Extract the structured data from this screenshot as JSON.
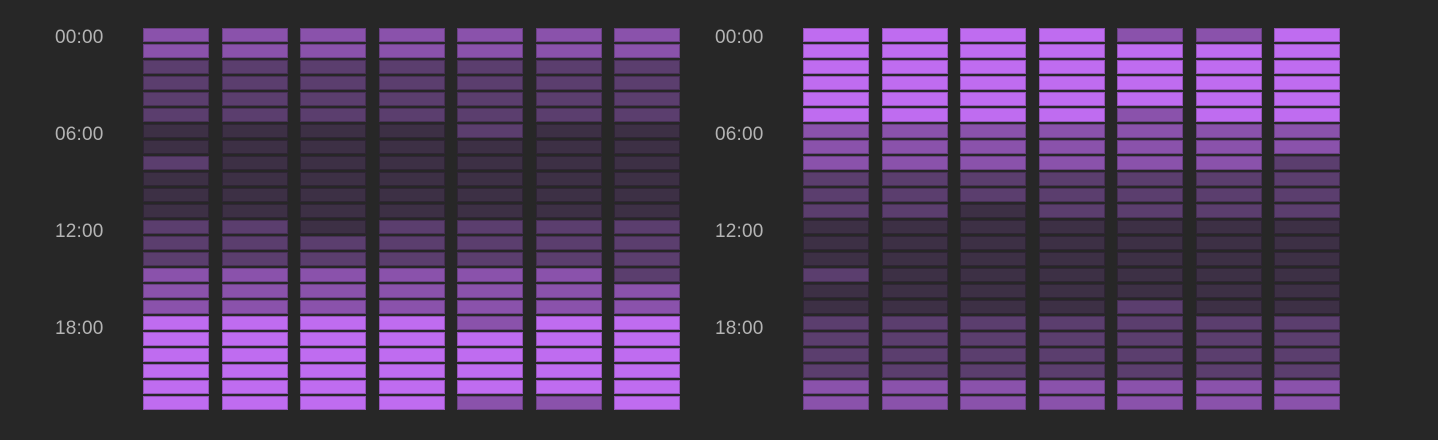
{
  "chart_data": [
    {
      "type": "heatmap",
      "title": "",
      "xlabel": "",
      "ylabel": "",
      "y_tick_labels": [
        "00:00",
        "06:00",
        "12:00",
        "18:00"
      ],
      "rows": 24,
      "columns": 7,
      "levels": 4,
      "level_colors": [
        "#3d3045",
        "#5b3e6e",
        "#8a52ab",
        "#bf6cf0"
      ],
      "legend": "none",
      "values": [
        [
          2,
          2,
          2,
          2,
          2,
          2,
          2
        ],
        [
          2,
          2,
          2,
          2,
          2,
          2,
          2
        ],
        [
          1,
          1,
          1,
          1,
          1,
          1,
          1
        ],
        [
          1,
          1,
          1,
          1,
          1,
          1,
          1
        ],
        [
          1,
          1,
          1,
          1,
          1,
          1,
          1
        ],
        [
          1,
          1,
          1,
          1,
          1,
          1,
          1
        ],
        [
          0,
          0,
          0,
          0,
          1,
          0,
          0
        ],
        [
          0,
          0,
          0,
          0,
          0,
          0,
          0
        ],
        [
          1,
          0,
          0,
          0,
          0,
          0,
          0
        ],
        [
          0,
          0,
          0,
          0,
          0,
          0,
          0
        ],
        [
          0,
          0,
          0,
          0,
          0,
          0,
          0
        ],
        [
          0,
          0,
          0,
          0,
          0,
          0,
          0
        ],
        [
          1,
          1,
          0,
          1,
          1,
          1,
          1
        ],
        [
          1,
          1,
          1,
          1,
          1,
          1,
          1
        ],
        [
          1,
          1,
          1,
          1,
          1,
          1,
          1
        ],
        [
          2,
          2,
          2,
          2,
          2,
          2,
          1
        ],
        [
          2,
          2,
          2,
          2,
          2,
          2,
          2
        ],
        [
          2,
          2,
          2,
          2,
          2,
          2,
          2
        ],
        [
          3,
          3,
          3,
          3,
          2,
          3,
          3
        ],
        [
          3,
          3,
          3,
          3,
          3,
          3,
          3
        ],
        [
          3,
          3,
          3,
          3,
          3,
          3,
          3
        ],
        [
          3,
          3,
          3,
          3,
          3,
          3,
          3
        ],
        [
          3,
          3,
          3,
          3,
          3,
          3,
          3
        ],
        [
          3,
          3,
          3,
          3,
          2,
          2,
          3
        ]
      ]
    },
    {
      "type": "heatmap",
      "title": "",
      "xlabel": "",
      "ylabel": "",
      "y_tick_labels": [
        "00:00",
        "06:00",
        "12:00",
        "18:00"
      ],
      "rows": 24,
      "columns": 7,
      "levels": 4,
      "level_colors": [
        "#3d3045",
        "#5b3e6e",
        "#8a52ab",
        "#bf6cf0"
      ],
      "legend": "none",
      "values": [
        [
          3,
          3,
          3,
          3,
          2,
          2,
          3
        ],
        [
          3,
          3,
          3,
          3,
          3,
          3,
          3
        ],
        [
          3,
          3,
          3,
          3,
          3,
          3,
          3
        ],
        [
          3,
          3,
          3,
          3,
          3,
          3,
          3
        ],
        [
          3,
          3,
          3,
          3,
          3,
          3,
          3
        ],
        [
          3,
          3,
          3,
          3,
          2,
          3,
          3
        ],
        [
          2,
          2,
          2,
          2,
          2,
          2,
          2
        ],
        [
          2,
          2,
          2,
          2,
          2,
          2,
          2
        ],
        [
          2,
          2,
          2,
          2,
          2,
          2,
          1
        ],
        [
          1,
          1,
          1,
          1,
          1,
          1,
          1
        ],
        [
          1,
          1,
          1,
          1,
          1,
          1,
          1
        ],
        [
          1,
          1,
          0,
          1,
          1,
          1,
          1
        ],
        [
          0,
          0,
          0,
          0,
          0,
          0,
          0
        ],
        [
          0,
          0,
          0,
          0,
          0,
          0,
          0
        ],
        [
          0,
          0,
          0,
          0,
          0,
          0,
          0
        ],
        [
          1,
          0,
          0,
          0,
          0,
          0,
          0
        ],
        [
          0,
          0,
          0,
          0,
          0,
          0,
          0
        ],
        [
          0,
          0,
          0,
          0,
          1,
          0,
          0
        ],
        [
          1,
          1,
          1,
          1,
          1,
          1,
          1
        ],
        [
          1,
          1,
          1,
          1,
          1,
          1,
          1
        ],
        [
          1,
          1,
          1,
          1,
          1,
          1,
          1
        ],
        [
          1,
          1,
          1,
          1,
          1,
          1,
          1
        ],
        [
          2,
          2,
          2,
          2,
          2,
          2,
          2
        ],
        [
          2,
          2,
          2,
          2,
          2,
          2,
          2
        ]
      ]
    }
  ],
  "panels": [
    {
      "labels": [
        "00:00",
        "06:00",
        "12:00",
        "18:00"
      ]
    },
    {
      "labels": [
        "00:00",
        "06:00",
        "12:00",
        "18:00"
      ]
    }
  ]
}
